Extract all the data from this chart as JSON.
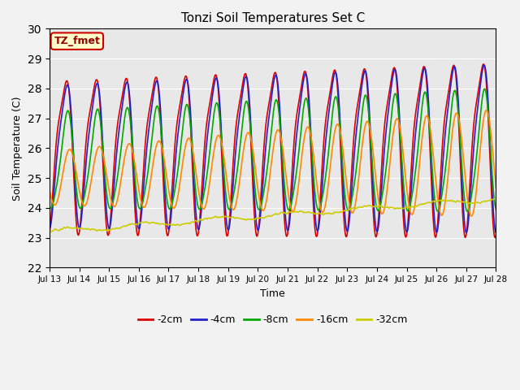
{
  "title": "Tonzi Soil Temperatures Set C",
  "xlabel": "Time",
  "ylabel": "Soil Temperature (C)",
  "ylim": [
    22.0,
    30.0
  ],
  "yticks": [
    22.0,
    23.0,
    24.0,
    25.0,
    26.0,
    27.0,
    28.0,
    29.0,
    30.0
  ],
  "xtick_labels": [
    "Jul 13",
    "Jul 14",
    "Jul 15",
    "Jul 16",
    "Jul 17",
    "Jul 18",
    "Jul 19",
    "Jul 20",
    "Jul 21",
    "Jul 22",
    "Jul 23",
    "Jul 24",
    "Jul 25",
    "Jul 26",
    "Jul 27",
    "Jul 28"
  ],
  "annotation_text": "TZ_fmet",
  "annotation_bg": "#ffffcc",
  "annotation_border": "#cc0000",
  "colors": {
    "-2cm": "#dd0000",
    "-4cm": "#2222cc",
    "-8cm": "#00aa00",
    "-16cm": "#ff8800",
    "-32cm": "#cccc00"
  },
  "bg_color": "#e8e8e8",
  "fig_color": "#f2f2f2",
  "linewidth": 1.2,
  "n_days": 15,
  "pts_per_day": 96
}
